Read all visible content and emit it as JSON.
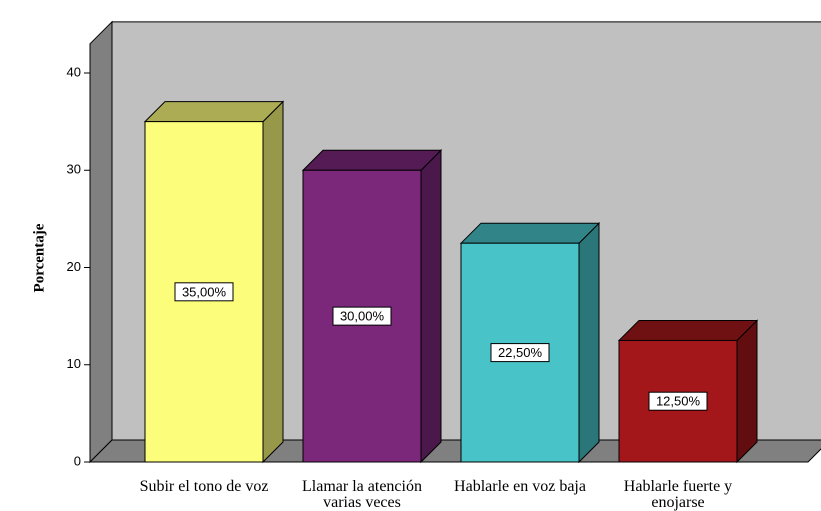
{
  "chart_data": {
    "type": "bar3d",
    "ylabel": "Porcentaje",
    "categories": [
      "Subir el tono de voz",
      "Llamar la atención varias veces",
      "Hablarle en voz baja",
      "Hablarle fuerte y enojarse"
    ],
    "values": [
      35,
      30,
      22.5,
      12.5
    ],
    "value_labels": [
      "35,00%",
      "30,00%",
      "22,50%",
      "12,50%"
    ],
    "colors": [
      "#fdfd7c",
      "#7b287b",
      "#48c4c8",
      "#a3171b"
    ],
    "ylim": [
      0,
      43
    ],
    "yticks": [
      0,
      10,
      20,
      30,
      40
    ]
  }
}
